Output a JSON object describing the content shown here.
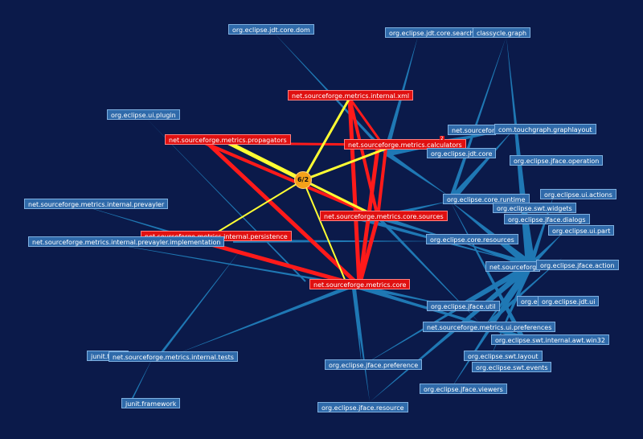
{
  "colors": {
    "background": "#0b1a4a",
    "edge": "#1f78b4",
    "focus_edge": "#ff1a1a",
    "highlight_edge": "#ffff33",
    "node": "#2f6aaa",
    "focus_node": "#e01010",
    "badge": "#f4a21a"
  },
  "center": {
    "label": "6/2"
  },
  "markers": {
    "calculators_count": "2"
  },
  "nodes": {
    "jdt_core_dom": "org.eclipse.jdt.core.dom",
    "jdt_core_search": "org.eclipse.jdt.core.search",
    "classycle_graph": "classycle.graph",
    "internal_xml": "net.sourceforge.metrics.internal.xml",
    "ui_plugin": "org.eclipse.ui.plugin",
    "propagators": "net.sourceforge.metrics.propagators",
    "net_sourceforge_partial": "net.sourcefor",
    "touchgraph": "com.touchgraph.graphlayout",
    "calculators": "net.sourceforge.metrics.calculators",
    "jdt_core": "org.eclipse.jdt.core",
    "jface_operation": "org.eclipse.jface.operation",
    "core_runtime": "org.eclipse.core.runtime",
    "ui_actions": "org.eclipse.ui.actions",
    "prevayler": "net.sourceforge.metrics.internal.prevayler",
    "swt_widgets": "org.eclipse.swt.widgets",
    "core_sources": "net.sourceforge.metrics.core.sources",
    "jface_dialogs": "org.eclipse.jface.dialogs",
    "ui_part": "org.eclipse.ui.part",
    "persistence": "net.sourceforge.metrics.internal.persistence",
    "prevayler_impl": "net.sourceforge.metrics.internal.prevayler.implementation",
    "core_resources": "org.eclipse.core.resources",
    "net_sourceforge_partial2": "net.sourceforg",
    "jface_action": "org.eclipse.jface.action",
    "metrics_core": "net.sourceforge.metrics.core",
    "org_e_partial": "org.e",
    "jdt_ui": "org.eclipse.jdt.ui",
    "jface_util": "org.eclipse.jface.util",
    "ui_preferences": "net.sourceforge.metrics.ui.preferences",
    "swt_internal_win32": "org.eclipse.swt.internal.awt.win32",
    "junit_textui": "junit.textui",
    "internal_tests": "net.sourceforge.metrics.internal.tests",
    "swt_layout": "org.eclipse.swt.layout",
    "jface_preference": "org.eclipse.jface.preference",
    "swt_events": "org.eclipse.swt.events",
    "jface_viewers": "org.eclipse.jface.viewers",
    "junit_framework": "junit.framework",
    "jface_resource": "org.eclipse.jface.resource"
  }
}
